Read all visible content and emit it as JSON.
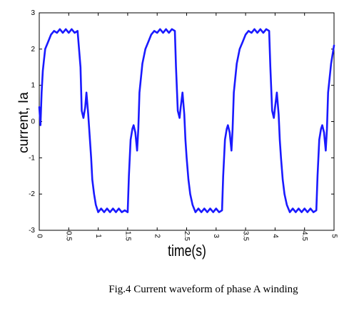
{
  "chart_data": {
    "type": "line",
    "title": "",
    "xlabel": "time(s)",
    "ylabel": "current, Ia",
    "xlim": [
      0,
      5
    ],
    "ylim": [
      -3,
      3
    ],
    "xticks": [
      "0",
      "0.5",
      "1",
      "1.5",
      "2",
      "2.5",
      "3",
      "3.5",
      "4",
      "4.5",
      "5"
    ],
    "yticks": [
      "3",
      "2",
      "1",
      "0",
      "-1",
      "-2",
      "-3"
    ],
    "grid": false,
    "series": [
      {
        "color": "#1a1aff",
        "x": [
          0,
          0.02,
          0.04,
          0.06,
          0.08,
          0.1,
          0.15,
          0.2,
          0.25,
          0.3,
          0.35,
          0.4,
          0.45,
          0.5,
          0.55,
          0.6,
          0.65,
          0.7,
          0.72,
          0.75,
          0.78,
          0.8,
          0.83,
          0.86,
          0.88,
          0.9,
          0.93,
          0.96,
          1.0,
          1.05,
          1.1,
          1.15,
          1.2,
          1.25,
          1.3,
          1.35,
          1.4,
          1.45,
          1.5,
          1.52,
          1.55,
          1.58,
          1.6,
          1.63,
          1.66,
          1.68,
          1.7,
          1.75,
          1.8,
          1.85,
          1.9,
          1.95,
          2.0,
          2.05,
          2.1,
          2.15,
          2.2,
          2.25,
          2.3,
          2.32,
          2.35,
          2.38,
          2.4,
          2.43,
          2.46,
          2.48,
          2.5,
          2.53,
          2.56,
          2.6,
          2.65,
          2.7,
          2.75,
          2.8,
          2.85,
          2.9,
          2.95,
          3.0,
          3.05,
          3.1,
          3.12,
          3.15,
          3.18,
          3.2,
          3.23,
          3.26,
          3.28,
          3.3,
          3.35,
          3.4,
          3.45,
          3.5,
          3.55,
          3.6,
          3.65,
          3.7,
          3.75,
          3.8,
          3.85,
          3.9,
          3.92,
          3.95,
          3.98,
          4.0,
          4.03,
          4.06,
          4.08,
          4.1,
          4.13,
          4.16,
          4.2,
          4.25,
          4.3,
          4.35,
          4.4,
          4.45,
          4.5,
          4.55,
          4.6,
          4.65,
          4.7,
          4.72,
          4.75,
          4.78,
          4.8,
          4.83,
          4.86,
          4.88,
          4.9,
          4.95,
          5.0
        ],
        "y": [
          0.4,
          -0.1,
          0.8,
          1.4,
          1.7,
          2.0,
          2.2,
          2.4,
          2.5,
          2.45,
          2.55,
          2.45,
          2.55,
          2.45,
          2.55,
          2.45,
          2.5,
          1.5,
          0.3,
          0.1,
          0.4,
          0.8,
          0.2,
          -0.5,
          -1.0,
          -1.6,
          -2.0,
          -2.3,
          -2.5,
          -2.4,
          -2.5,
          -2.4,
          -2.5,
          -2.4,
          -2.5,
          -2.4,
          -2.5,
          -2.45,
          -2.5,
          -1.5,
          -0.5,
          -0.2,
          -0.1,
          -0.3,
          -0.8,
          -0.2,
          0.8,
          1.6,
          2.0,
          2.2,
          2.4,
          2.5,
          2.45,
          2.55,
          2.45,
          2.55,
          2.45,
          2.55,
          2.5,
          1.5,
          0.3,
          0.1,
          0.4,
          0.8,
          0.2,
          -0.5,
          -1.0,
          -1.6,
          -2.0,
          -2.3,
          -2.5,
          -2.4,
          -2.5,
          -2.4,
          -2.5,
          -2.4,
          -2.5,
          -2.4,
          -2.5,
          -2.45,
          -1.5,
          -0.5,
          -0.2,
          -0.1,
          -0.3,
          -0.8,
          -0.2,
          0.8,
          1.6,
          2.0,
          2.2,
          2.4,
          2.5,
          2.45,
          2.55,
          2.45,
          2.55,
          2.45,
          2.55,
          2.5,
          1.5,
          0.3,
          0.1,
          0.4,
          0.8,
          0.2,
          -0.5,
          -1.0,
          -1.6,
          -2.0,
          -2.3,
          -2.5,
          -2.4,
          -2.5,
          -2.4,
          -2.5,
          -2.4,
          -2.5,
          -2.4,
          -2.5,
          -2.45,
          -1.5,
          -0.5,
          -0.2,
          -0.1,
          -0.3,
          -0.8,
          -0.2,
          0.8,
          1.6,
          2.1
        ]
      }
    ]
  },
  "caption": "Fig.4 Current waveform of phase A winding"
}
